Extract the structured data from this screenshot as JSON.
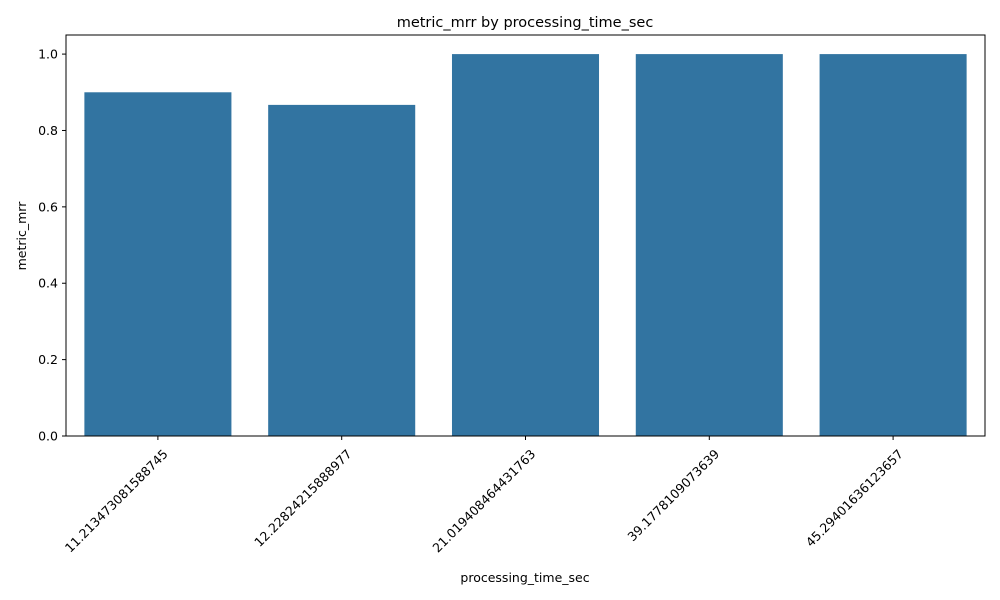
{
  "chart_data": {
    "type": "bar",
    "title": "metric_mrr by processing_time_sec",
    "xlabel": "processing_time_sec",
    "ylabel": "metric_mrr",
    "categories": [
      "11.213473081588745",
      "12.22824215888977",
      "21.019408464431763",
      "39.1778109073639",
      "45.29401636123657"
    ],
    "values": [
      0.9,
      0.867,
      1.0,
      1.0,
      1.0
    ],
    "ylim": [
      0,
      1.05
    ],
    "yticks": [
      "0.0",
      "0.2",
      "0.4",
      "0.6",
      "0.8",
      "1.0"
    ],
    "grid": false,
    "bar_color": "#3274a1",
    "xtick_rotation_deg": 45
  }
}
